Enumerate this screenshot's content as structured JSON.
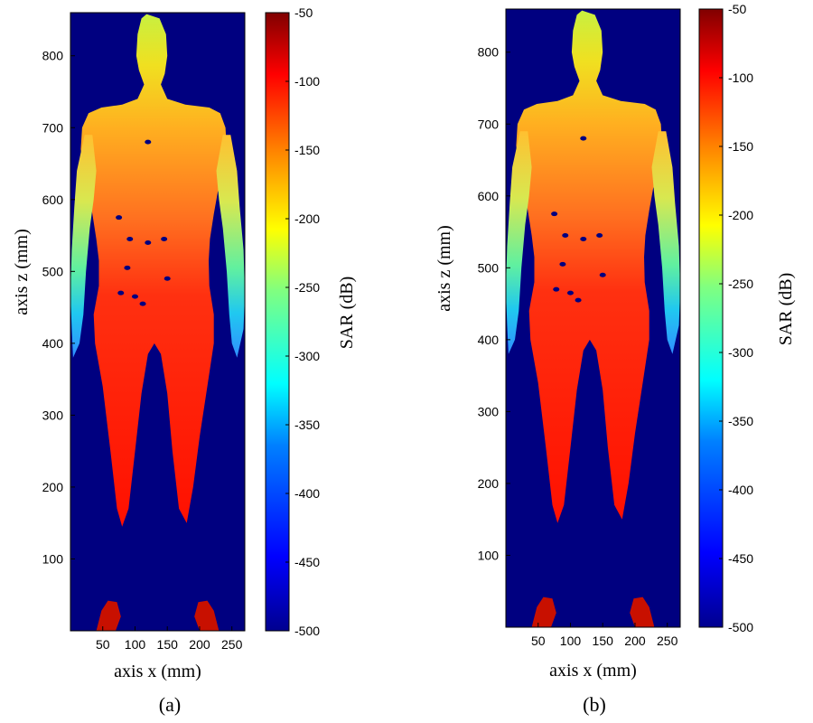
{
  "colors": {
    "background": "#000080",
    "colormap_jet": [
      "#00008f",
      "#0000ff",
      "#0080ff",
      "#00ffff",
      "#80ff80",
      "#ffff00",
      "#ff8000",
      "#ff0000",
      "#800000"
    ]
  },
  "chart_data": [
    {
      "type": "heatmap",
      "panel_label": "(a)",
      "xlabel": "axis x (mm)",
      "ylabel": "axis z (mm)",
      "colorbar_label": "SAR (dB)",
      "x_ticks": [
        "50",
        "100",
        "150",
        "200",
        "250"
      ],
      "y_ticks": [
        "100",
        "200",
        "300",
        "400",
        "500",
        "600",
        "700",
        "800"
      ],
      "colorbar_ticks": [
        "-50",
        "-100",
        "-150",
        "-200",
        "-250",
        "-300",
        "-350",
        "-400",
        "-450",
        "-500"
      ],
      "xlim": [
        0,
        270
      ],
      "ylim": [
        0,
        860
      ],
      "clim": [
        -500,
        -50
      ],
      "colormap": "jet",
      "regions": [
        {
          "name": "head",
          "sar_db": -200
        },
        {
          "name": "torso",
          "sar_db": -130
        },
        {
          "name": "arms",
          "sar_db": -280
        },
        {
          "name": "legs",
          "sar_db": -90
        },
        {
          "name": "feet",
          "sar_db": -60
        }
      ]
    },
    {
      "type": "heatmap",
      "panel_label": "(b)",
      "xlabel": "axis x (mm)",
      "ylabel": "axis z (mm)",
      "colorbar_label": "SAR (dB)",
      "x_ticks": [
        "50",
        "100",
        "150",
        "200",
        "250"
      ],
      "y_ticks": [
        "100",
        "200",
        "300",
        "400",
        "500",
        "600",
        "700",
        "800"
      ],
      "colorbar_ticks": [
        "-50",
        "-100",
        "-150",
        "-200",
        "-250",
        "-300",
        "-350",
        "-400",
        "-450",
        "-500"
      ],
      "xlim": [
        0,
        270
      ],
      "ylim": [
        0,
        860
      ],
      "clim": [
        -500,
        -50
      ],
      "colormap": "jet",
      "regions": [
        {
          "name": "head",
          "sar_db": -200
        },
        {
          "name": "torso",
          "sar_db": -130
        },
        {
          "name": "arms",
          "sar_db": -280
        },
        {
          "name": "legs",
          "sar_db": -90
        },
        {
          "name": "feet",
          "sar_db": -60
        }
      ]
    }
  ]
}
